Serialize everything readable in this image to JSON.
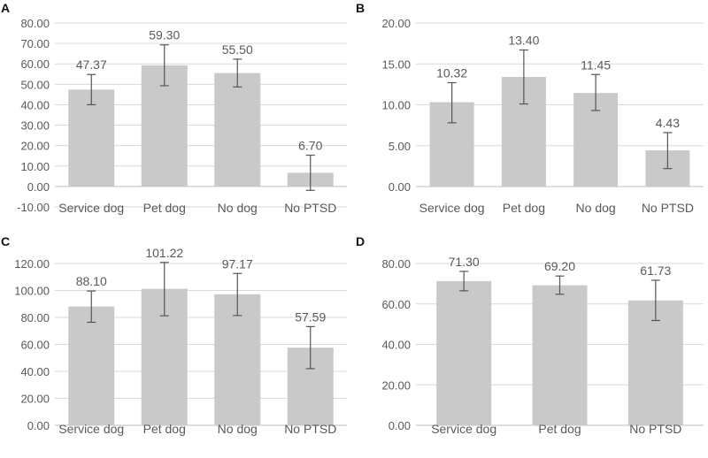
{
  "colors": {
    "bar": "#c9c9c9",
    "grid": "#d9d9d9",
    "axis": "#bfbfbf",
    "error": "#555555",
    "text": "#595959"
  },
  "chart_data": [
    {
      "panel": "A",
      "type": "bar",
      "categories": [
        "Service dog",
        "Pet dog",
        "No dog",
        "No PTSD"
      ],
      "values": [
        47.37,
        59.3,
        55.5,
        6.7
      ],
      "data_labels": [
        "47.37",
        "59.30",
        "55.50",
        "6.70"
      ],
      "error_low": [
        40.0,
        49.3,
        48.7,
        -1.9
      ],
      "error_high": [
        54.8,
        69.3,
        62.3,
        15.3
      ],
      "ylim": [
        -10,
        80
      ],
      "yticks": [
        "-10.00",
        "0.00",
        "10.00",
        "20.00",
        "30.00",
        "40.00",
        "50.00",
        "60.00",
        "70.00",
        "80.00"
      ],
      "ytick_values": [
        -10,
        0,
        10,
        20,
        30,
        40,
        50,
        60,
        70,
        80
      ],
      "grid": true
    },
    {
      "panel": "B",
      "type": "bar",
      "categories": [
        "Service dog",
        "Pet dog",
        "No dog",
        "No PTSD"
      ],
      "values": [
        10.32,
        13.4,
        11.45,
        4.43
      ],
      "data_labels": [
        "10.32",
        "13.40",
        "11.45",
        "4.43"
      ],
      "error_low": [
        7.8,
        10.1,
        9.3,
        2.2
      ],
      "error_high": [
        12.7,
        16.7,
        13.7,
        6.6
      ],
      "ylim": [
        0,
        20
      ],
      "yticks": [
        "0.00",
        "5.00",
        "10.00",
        "15.00",
        "20.00"
      ],
      "ytick_values": [
        0,
        5,
        10,
        15,
        20
      ],
      "grid": true
    },
    {
      "panel": "C",
      "type": "bar",
      "categories": [
        "Service dog",
        "Pet dog",
        "No dog",
        "No PTSD"
      ],
      "values": [
        88.1,
        101.22,
        97.17,
        57.59
      ],
      "data_labels": [
        "88.10",
        "101.22",
        "97.17",
        "57.59"
      ],
      "error_low": [
        76.4,
        81.2,
        81.4,
        42.0
      ],
      "error_high": [
        99.6,
        120.8,
        112.6,
        73.2
      ],
      "ylim": [
        0,
        120
      ],
      "yticks": [
        "0.00",
        "20.00",
        "40.00",
        "60.00",
        "80.00",
        "100.00",
        "120.00"
      ],
      "ytick_values": [
        0,
        20,
        40,
        60,
        80,
        100,
        120
      ],
      "grid": true
    },
    {
      "panel": "D",
      "type": "bar",
      "categories": [
        "Service dog",
        "Pet dog",
        "No PTSD"
      ],
      "values": [
        71.3,
        69.2,
        61.73
      ],
      "data_labels": [
        "71.30",
        "69.20",
        "61.73"
      ],
      "error_low": [
        66.5,
        64.8,
        51.8
      ],
      "error_high": [
        76.1,
        73.8,
        71.7
      ],
      "ylim": [
        0,
        80
      ],
      "yticks": [
        "0.00",
        "20.00",
        "40.00",
        "60.00",
        "80.00"
      ],
      "ytick_values": [
        0,
        20,
        40,
        60,
        80
      ],
      "grid": true
    }
  ]
}
